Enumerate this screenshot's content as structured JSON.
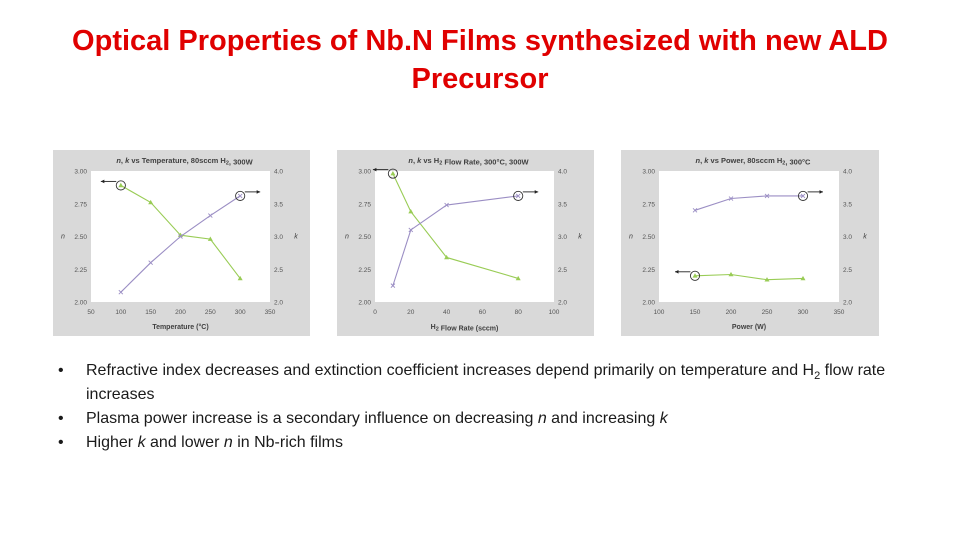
{
  "slide": {
    "title": "Optical Properties of Nb.N Films synthesized with new ALD Precursor"
  },
  "bullets": [
    {
      "text": "Refractive index decreases and extinction coefficient increases depend primarily on temperature and H2 flow rate increases"
    },
    {
      "text": "Plasma power increase is a secondary influence on decreasing n and increasing k"
    },
    {
      "text": "Higher k and lower n in Nb-rich films"
    }
  ],
  "colors": {
    "n_series": "#99cc55",
    "k_series": "#9b8ec4",
    "panel_bg": "#d9d9d9",
    "title": "#e00000"
  },
  "chart_data": [
    {
      "type": "line",
      "title": "n, k vs Temperature, 80sccm H2, 300W",
      "xlabel": "Temperature (°C)",
      "ylabel": "n",
      "y2label": "k",
      "xlim": [
        50,
        350
      ],
      "xticks": [
        50,
        100,
        150,
        200,
        250,
        300,
        350
      ],
      "ylim": [
        2.0,
        3.0
      ],
      "yticks": [
        "2.00",
        "2.25",
        "2.50",
        "2.75",
        "3.00"
      ],
      "y2lim": [
        2.0,
        4.0
      ],
      "y2ticks": [
        "2.0",
        "2.5",
        "3.0",
        "3.5",
        "4.0"
      ],
      "series": [
        {
          "key": "n",
          "axis": "left",
          "marker": "triangle",
          "x": [
            100,
            150,
            200,
            250,
            300
          ],
          "y": [
            2.89,
            2.76,
            2.51,
            2.48,
            2.18
          ]
        },
        {
          "key": "k",
          "axis": "right",
          "marker": "x",
          "x": [
            100,
            150,
            200,
            250,
            300
          ],
          "y": [
            2.15,
            2.6,
            3.0,
            3.32,
            3.62
          ]
        }
      ],
      "circled_points": [
        {
          "series": "n",
          "x": 100,
          "arrow": "left"
        },
        {
          "series": "k",
          "x": 300,
          "arrow": "right"
        }
      ]
    },
    {
      "type": "line",
      "title": "n, k vs H2 Flow Rate, 300°C, 300W",
      "xlabel": "H2 Flow Rate (sccm)",
      "ylabel": "n",
      "y2label": "k",
      "xlim": [
        0,
        100
      ],
      "xticks": [
        0,
        20,
        40,
        60,
        80,
        100
      ],
      "ylim": [
        2.0,
        3.0
      ],
      "yticks": [
        "2.00",
        "2.25",
        "2.50",
        "2.75",
        "3.00"
      ],
      "y2lim": [
        2.0,
        4.0
      ],
      "y2ticks": [
        "2.0",
        "2.5",
        "3.0",
        "3.5",
        "4.0"
      ],
      "series": [
        {
          "key": "n",
          "axis": "left",
          "marker": "triangle",
          "x": [
            10,
            20,
            40,
            80
          ],
          "y": [
            2.98,
            2.69,
            2.34,
            2.18
          ]
        },
        {
          "key": "k",
          "axis": "right",
          "marker": "x",
          "x": [
            10,
            20,
            40,
            80
          ],
          "y": [
            2.25,
            3.1,
            3.48,
            3.62
          ]
        }
      ],
      "circled_points": [
        {
          "series": "n",
          "x": 10,
          "arrow": "left"
        },
        {
          "series": "k",
          "x": 80,
          "arrow": "right"
        }
      ]
    },
    {
      "type": "line",
      "title": "n, k vs Power, 80sccm H2, 300°C",
      "xlabel": "Power (W)",
      "ylabel": "n",
      "y2label": "k",
      "xlim": [
        100,
        350
      ],
      "xticks": [
        100,
        150,
        200,
        250,
        300,
        350
      ],
      "ylim": [
        2.0,
        3.0
      ],
      "yticks": [
        "2.00",
        "2.25",
        "2.50",
        "2.75",
        "3.00"
      ],
      "y2lim": [
        2.0,
        4.0
      ],
      "y2ticks": [
        "2.0",
        "2.5",
        "3.0",
        "3.5",
        "4.0"
      ],
      "series": [
        {
          "key": "n",
          "axis": "left",
          "marker": "triangle",
          "x": [
            150,
            200,
            250,
            300
          ],
          "y": [
            2.2,
            2.21,
            2.17,
            2.18
          ]
        },
        {
          "key": "k",
          "axis": "right",
          "marker": "x",
          "x": [
            150,
            200,
            250,
            300
          ],
          "y": [
            3.4,
            3.58,
            3.62,
            3.62
          ]
        }
      ],
      "circled_points": [
        {
          "series": "n",
          "x": 150,
          "arrow": "left"
        },
        {
          "series": "k",
          "x": 300,
          "arrow": "right"
        }
      ]
    }
  ]
}
